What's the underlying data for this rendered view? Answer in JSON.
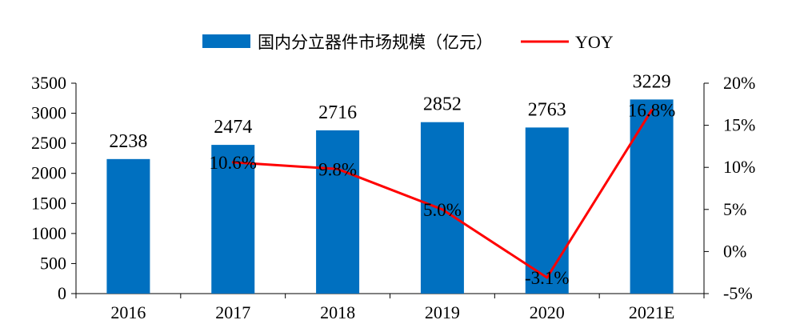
{
  "chart_data": {
    "type": "bar",
    "categories": [
      "2016",
      "2017",
      "2018",
      "2019",
      "2020",
      "2021E"
    ],
    "series": [
      {
        "name": "国内分立器件市场规模（亿元）",
        "type": "bar",
        "axis": "left",
        "color": "#0070C0",
        "values": [
          2238,
          2474,
          2716,
          2852,
          2763,
          3229
        ],
        "labels": [
          "2238",
          "2474",
          "2716",
          "2852",
          "2763",
          "3229"
        ]
      },
      {
        "name": "YOY",
        "type": "line",
        "axis": "right",
        "color": "#FF0000",
        "values": [
          null,
          10.6,
          9.8,
          5.0,
          -3.1,
          16.8
        ],
        "labels": [
          "",
          "10.6%",
          "9.8%",
          "5.0%",
          "-3.1%",
          "16.8%"
        ]
      }
    ],
    "y_left": {
      "ylim": [
        0,
        3500
      ],
      "ticks": [
        0,
        500,
        1000,
        1500,
        2000,
        2500,
        3000,
        3500
      ],
      "tick_labels": [
        "0",
        "500",
        "1000",
        "1500",
        "2000",
        "2500",
        "3000",
        "3500"
      ]
    },
    "y_right": {
      "ylim": [
        -5,
        20
      ],
      "ticks": [
        -5,
        0,
        5,
        10,
        15,
        20
      ],
      "tick_labels": [
        "-5%",
        "0%",
        "5%",
        "10%",
        "15%",
        "20%"
      ]
    },
    "grid": false,
    "legend_position": "top-center"
  }
}
